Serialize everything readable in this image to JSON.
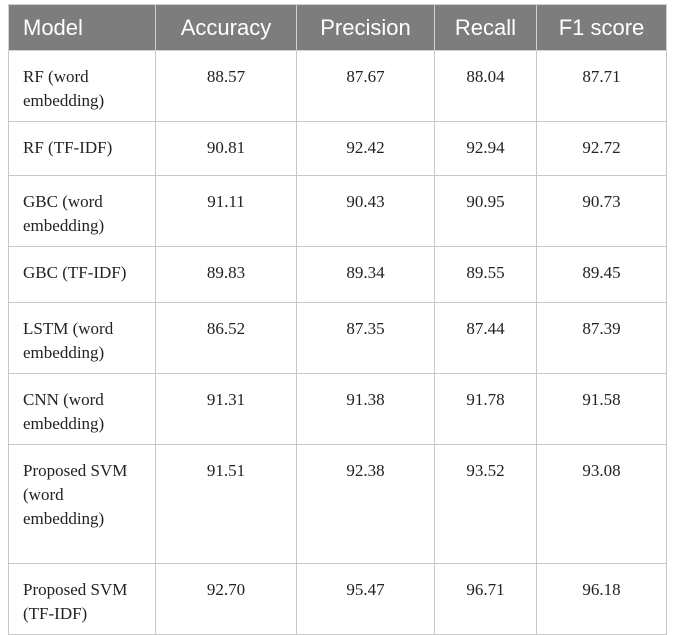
{
  "table": {
    "header": [
      "Model",
      "Accuracy",
      "Precision",
      "Recall",
      "F1 score"
    ],
    "rows": [
      [
        "RF (word embedding)",
        "88.57",
        "87.67",
        "88.04",
        "87.71"
      ],
      [
        "RF (TF-IDF)",
        "90.81",
        "92.42",
        "92.94",
        "92.72"
      ],
      [
        "GBC (word embedding)",
        "91.11",
        "90.43",
        "90.95",
        "90.73"
      ],
      [
        "GBC (TF-IDF)",
        "89.83",
        "89.34",
        "89.55",
        "89.45"
      ],
      [
        "LSTM (word embedding)",
        "86.52",
        "87.35",
        "87.44",
        "87.39"
      ],
      [
        "CNN (word embedding)",
        "91.31",
        "91.38",
        "91.78",
        "91.58"
      ],
      [
        "Proposed SVM (word embedding)",
        "91.51",
        "92.38",
        "93.52",
        "93.08"
      ],
      [
        "Proposed SVM (TF-IDF)",
        "92.70",
        "95.47",
        "96.71",
        "96.18"
      ]
    ]
  }
}
